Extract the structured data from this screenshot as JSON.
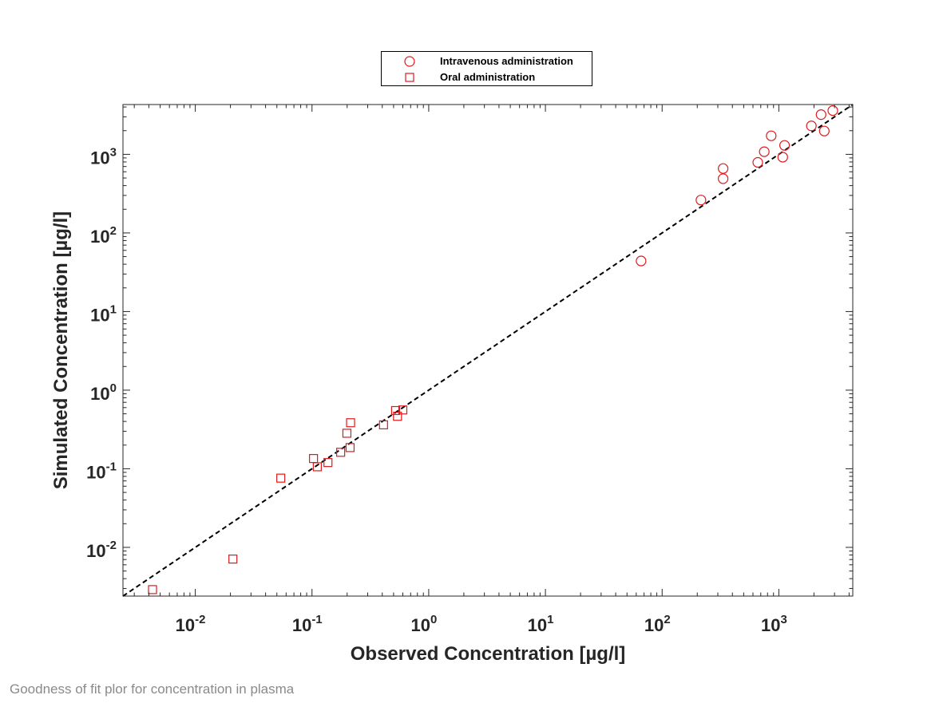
{
  "caption": "Goodness of fit plor for concentration in plasma",
  "colors": {
    "marker": "#e0191d",
    "identity_line": "#000000",
    "axis": "#262626"
  },
  "chart_data": {
    "type": "scatter",
    "xlabel": "Observed Concentration [µg/l]",
    "ylabel": "Simulated Concentration [µg/l]",
    "xscale": "log",
    "yscale": "log",
    "xlim": [
      0.0024,
      4300
    ],
    "ylim": [
      0.0024,
      4300
    ],
    "x_ticks": [
      0.01,
      0.1,
      1,
      10,
      100,
      1000
    ],
    "x_tick_labels": [
      {
        "base": "10",
        "exp": "-2"
      },
      {
        "base": "10",
        "exp": "-1"
      },
      {
        "base": "10",
        "exp": "0"
      },
      {
        "base": "10",
        "exp": "1"
      },
      {
        "base": "10",
        "exp": "2"
      },
      {
        "base": "10",
        "exp": "3"
      }
    ],
    "y_ticks": [
      0.01,
      0.1,
      1,
      10,
      100,
      1000
    ],
    "y_tick_labels": [
      {
        "base": "10",
        "exp": "-2"
      },
      {
        "base": "10",
        "exp": "-1"
      },
      {
        "base": "10",
        "exp": "0"
      },
      {
        "base": "10",
        "exp": "1"
      },
      {
        "base": "10",
        "exp": "2"
      },
      {
        "base": "10",
        "exp": "3"
      }
    ],
    "grid": false,
    "legend_position": "top-center-outside",
    "identity_line": true,
    "series": [
      {
        "name": "Intravenous administration",
        "marker": "circle",
        "points": [
          [
            66,
            44
          ],
          [
            215,
            262
          ],
          [
            333,
            490
          ],
          [
            333,
            660
          ],
          [
            660,
            790
          ],
          [
            750,
            1080
          ],
          [
            860,
            1720
          ],
          [
            1080,
            920
          ],
          [
            1120,
            1300
          ],
          [
            1900,
            2300
          ],
          [
            2300,
            3200
          ],
          [
            2450,
            1980
          ],
          [
            2900,
            3600
          ]
        ]
      },
      {
        "name": "Oral administration",
        "marker": "square",
        "points": [
          [
            0.0043,
            0.0029
          ],
          [
            0.021,
            0.0071
          ],
          [
            0.054,
            0.076
          ],
          [
            0.103,
            0.135
          ],
          [
            0.111,
            0.106
          ],
          [
            0.137,
            0.12
          ],
          [
            0.176,
            0.162
          ],
          [
            0.199,
            0.283
          ],
          [
            0.212,
            0.186
          ],
          [
            0.214,
            0.385
          ],
          [
            0.41,
            0.362
          ],
          [
            0.52,
            0.55
          ],
          [
            0.54,
            0.465
          ],
          [
            0.6,
            0.56
          ]
        ]
      }
    ]
  }
}
